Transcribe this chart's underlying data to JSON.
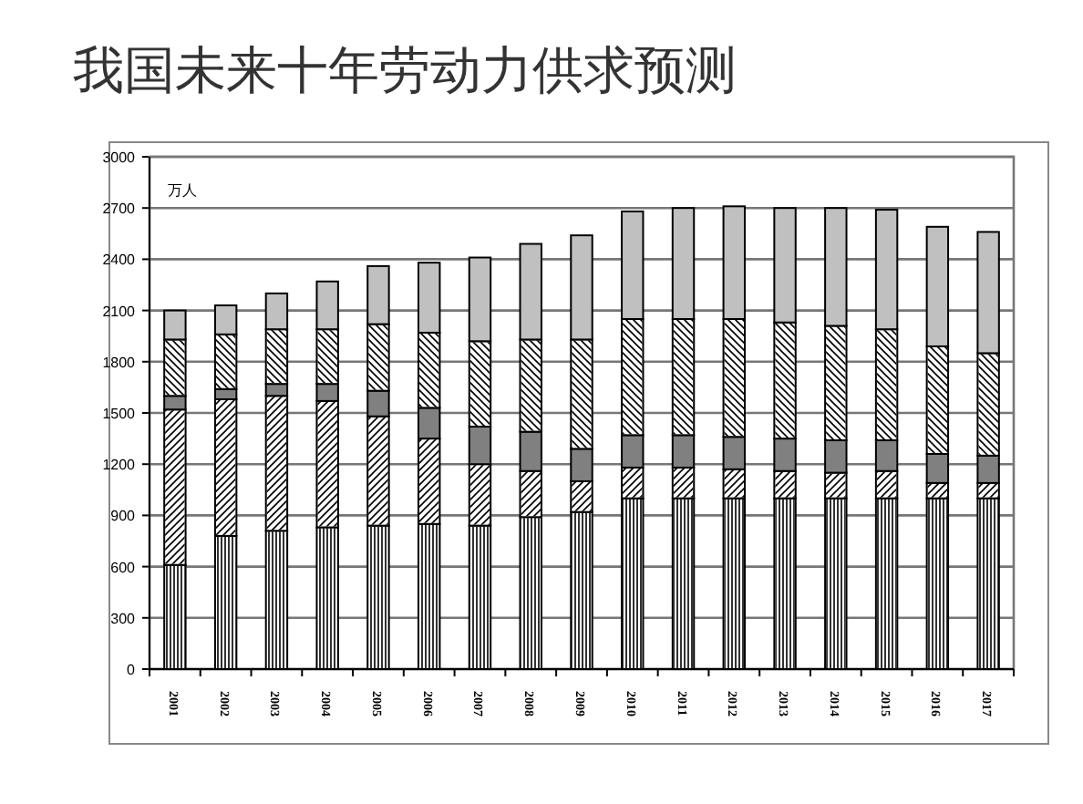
{
  "chart_data": {
    "type": "bar",
    "stacked": true,
    "title": "我国未来十年劳动力供求预测",
    "annotations": [
      "万人"
    ],
    "categories": [
      "2001",
      "2002",
      "2003",
      "2004",
      "2005",
      "2006",
      "2007",
      "2008",
      "2009",
      "2010",
      "2011",
      "2012",
      "2013",
      "2014",
      "2015",
      "2016",
      "2017"
    ],
    "series": [
      {
        "color": "#ffffff",
        "values": [
          610,
          780,
          810,
          830,
          840,
          850,
          840,
          890,
          920,
          1000,
          1000,
          1000,
          1000,
          1000,
          1000,
          1000,
          1000
        ]
      },
      {
        "color": "#ffffff",
        "values": [
          910,
          800,
          790,
          740,
          640,
          500,
          360,
          270,
          180,
          180,
          180,
          170,
          160,
          150,
          160,
          90,
          90
        ]
      },
      {
        "color": "#808080",
        "values": [
          80,
          60,
          70,
          100,
          150,
          180,
          220,
          230,
          190,
          190,
          190,
          190,
          190,
          190,
          180,
          170,
          160
        ]
      },
      {
        "color": "#ffffff",
        "values": [
          330,
          320,
          320,
          320,
          390,
          440,
          500,
          540,
          640,
          680,
          680,
          690,
          680,
          670,
          650,
          630,
          600
        ]
      },
      {
        "color": "#c0c0c0",
        "values": [
          170,
          170,
          210,
          280,
          340,
          410,
          490,
          560,
          610,
          630,
          650,
          660,
          670,
          690,
          700,
          700,
          710
        ]
      }
    ],
    "ylim": [
      0,
      3000
    ],
    "yticks": [
      0,
      300,
      600,
      900,
      1200,
      1500,
      1800,
      2100,
      2400,
      2700,
      3000
    ],
    "grid": "y"
  }
}
